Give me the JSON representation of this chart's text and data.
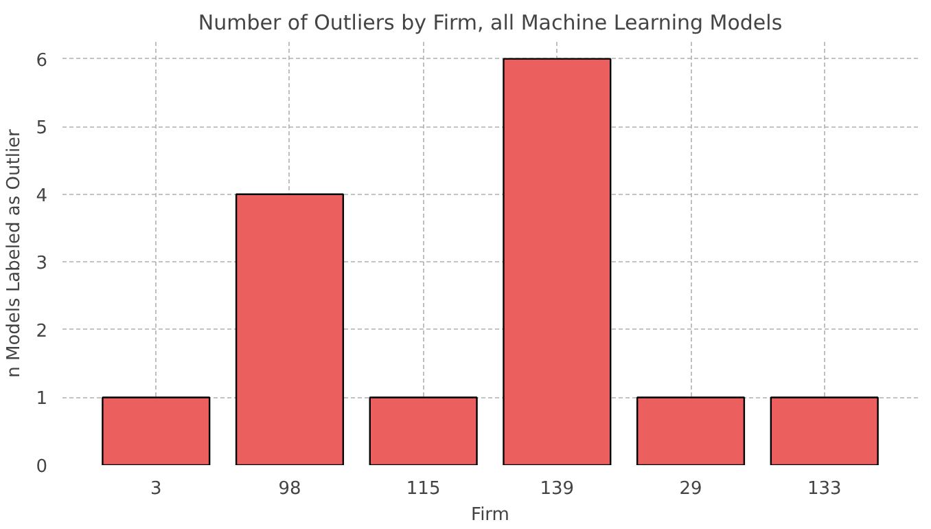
{
  "chart_data": {
    "type": "bar",
    "title": "Number of Outliers by Firm, all Machine Learning Models",
    "xlabel": "Firm",
    "ylabel": "n Models Labeled as Outlier",
    "categories": [
      "3",
      "98",
      "115",
      "139",
      "29",
      "133"
    ],
    "values": [
      1,
      4,
      1,
      6,
      1,
      1
    ],
    "color": "#ec5f5f",
    "ylim": [
      0,
      6.25
    ],
    "yticks": [
      0,
      1,
      2,
      3,
      4,
      5,
      6
    ],
    "grid": true
  }
}
